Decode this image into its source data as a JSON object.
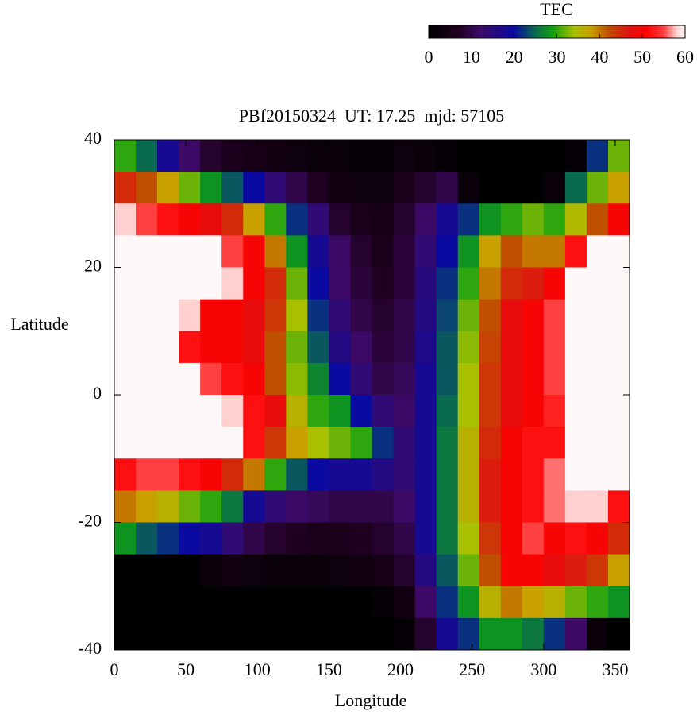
{
  "chart_data": {
    "type": "heatmap",
    "title": "PBf20150324  UT: 17.25  mjd: 57105",
    "x_label": "Longitude",
    "y_label": "Latitude",
    "xlim": [
      0,
      360
    ],
    "xticks": [
      0,
      50,
      100,
      150,
      200,
      250,
      300,
      350
    ],
    "ylim": [
      -40,
      40
    ],
    "yticks": [
      -40,
      -20,
      0,
      20,
      40
    ],
    "colorbar": {
      "title": "TEC",
      "lim": [
        0,
        60
      ],
      "ticks": [
        0,
        10,
        20,
        30,
        40,
        50,
        60
      ]
    },
    "colormap": [
      {
        "value": 0,
        "color": "#000000"
      },
      {
        "value": 7,
        "color": "#200020"
      },
      {
        "value": 12,
        "color": "#3c0a66"
      },
      {
        "value": 20,
        "color": "#0a0aa0"
      },
      {
        "value": 25,
        "color": "#0a6a50"
      },
      {
        "value": 29,
        "color": "#10a010"
      },
      {
        "value": 34,
        "color": "#a8c000"
      },
      {
        "value": 38,
        "color": "#c8a000"
      },
      {
        "value": 42,
        "color": "#c05000"
      },
      {
        "value": 47,
        "color": "#e01010"
      },
      {
        "value": 51,
        "color": "#ff0000"
      },
      {
        "value": 55,
        "color": "#ff4040"
      },
      {
        "value": 58,
        "color": "#ffd0d0"
      },
      {
        "value": 60,
        "color": "#fff8f8"
      }
    ],
    "x": [
      7.5,
      22.5,
      37.5,
      52.5,
      67.5,
      82.5,
      97.5,
      112.5,
      127.5,
      142.5,
      157.5,
      172.5,
      187.5,
      202.5,
      217.5,
      232.5,
      247.5,
      262.5,
      277.5,
      292.5,
      307.5,
      322.5,
      337.5,
      352.5
    ],
    "y": [
      37.5,
      32.5,
      27.5,
      22.5,
      17.5,
      12.5,
      7.5,
      2.5,
      -2.5,
      -7.5,
      -12.5,
      -17.5,
      -22.5,
      -27.5,
      -32.5,
      -37.5
    ],
    "z": [
      [
        30,
        25,
        18,
        12,
        8,
        6,
        5,
        4,
        3,
        2,
        2,
        1,
        1,
        3,
        2,
        1,
        0,
        0,
        0,
        0,
        0,
        1,
        22,
        32
      ],
      [
        45,
        42,
        38,
        32,
        28,
        24,
        20,
        14,
        10,
        7,
        4,
        3,
        3,
        6,
        8,
        10,
        2,
        0,
        0,
        0,
        2,
        25,
        32,
        38
      ],
      [
        58,
        55,
        52,
        50,
        48,
        45,
        38,
        30,
        22,
        14,
        8,
        6,
        5,
        8,
        12,
        18,
        22,
        28,
        30,
        32,
        30,
        35,
        42,
        50
      ],
      [
        60,
        60,
        60,
        60,
        60,
        55,
        50,
        40,
        28,
        18,
        12,
        8,
        6,
        9,
        14,
        20,
        28,
        38,
        42,
        40,
        40,
        52,
        60,
        60
      ],
      [
        60,
        60,
        60,
        60,
        60,
        58,
        50,
        45,
        32,
        20,
        12,
        9,
        7,
        9,
        15,
        22,
        30,
        40,
        45,
        46,
        50,
        60,
        60,
        60
      ],
      [
        60,
        60,
        60,
        58,
        50,
        50,
        48,
        44,
        34,
        22,
        14,
        10,
        8,
        10,
        16,
        23,
        32,
        42,
        48,
        50,
        55,
        60,
        60,
        60
      ],
      [
        60,
        60,
        60,
        52,
        50,
        50,
        48,
        42,
        32,
        24,
        16,
        12,
        9,
        10,
        17,
        24,
        33,
        43,
        48,
        50,
        55,
        60,
        60,
        60
      ],
      [
        60,
        60,
        60,
        60,
        55,
        52,
        50,
        42,
        33,
        27,
        20,
        14,
        10,
        11,
        18,
        24,
        34,
        44,
        48,
        50,
        55,
        60,
        60,
        60
      ],
      [
        60,
        60,
        60,
        60,
        60,
        58,
        52,
        48,
        36,
        30,
        28,
        20,
        14,
        12,
        18,
        25,
        34,
        44,
        48,
        50,
        53,
        60,
        60,
        60
      ],
      [
        60,
        60,
        60,
        60,
        60,
        60,
        52,
        44,
        38,
        34,
        32,
        30,
        22,
        14,
        18,
        26,
        36,
        45,
        50,
        52,
        52,
        60,
        60,
        60
      ],
      [
        52,
        55,
        55,
        52,
        50,
        45,
        40,
        30,
        24,
        20,
        18,
        18,
        16,
        14,
        18,
        26,
        36,
        46,
        50,
        52,
        56,
        60,
        60,
        60
      ],
      [
        40,
        38,
        36,
        32,
        30,
        26,
        18,
        14,
        12,
        11,
        10,
        10,
        10,
        12,
        18,
        26,
        36,
        46,
        50,
        52,
        56,
        58,
        58,
        52
      ],
      [
        28,
        24,
        22,
        20,
        18,
        14,
        10,
        8,
        7,
        6,
        6,
        7,
        8,
        10,
        18,
        26,
        34,
        44,
        50,
        55,
        50,
        52,
        50,
        45
      ],
      [
        0,
        0,
        0,
        0,
        2,
        4,
        3,
        2,
        2,
        2,
        3,
        4,
        5,
        8,
        16,
        24,
        32,
        42,
        50,
        50,
        48,
        46,
        44,
        38
      ],
      [
        0,
        0,
        0,
        0,
        0,
        0,
        0,
        0,
        0,
        0,
        0,
        0,
        1,
        4,
        12,
        22,
        28,
        36,
        40,
        38,
        36,
        32,
        30,
        28
      ],
      [
        0,
        0,
        0,
        0,
        0,
        0,
        0,
        0,
        0,
        0,
        0,
        0,
        0,
        1,
        8,
        18,
        22,
        28,
        28,
        26,
        22,
        12,
        2,
        0
      ]
    ]
  }
}
